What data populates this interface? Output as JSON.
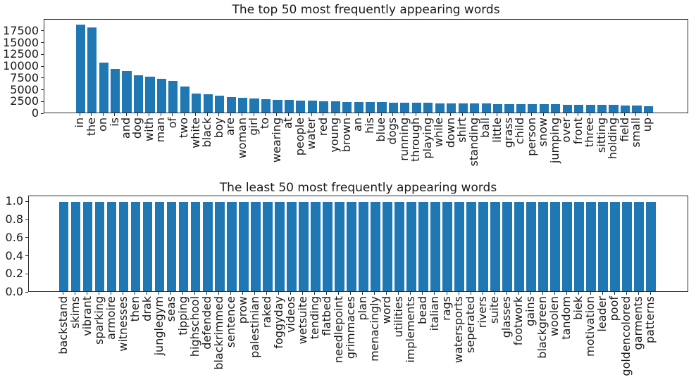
{
  "figure": {
    "background": "#ffffff",
    "bar_color": "#1f77b4",
    "spine_color": "#2b2b2b",
    "text_color": "#191919"
  },
  "chart_data": [
    {
      "type": "bar",
      "title": "The top 50 most frequently appearing words",
      "xlabel": "",
      "ylabel": "",
      "grid": false,
      "legend": false,
      "ylim": [
        0,
        20000
      ],
      "yticks": [
        {
          "v": 0,
          "label": "0"
        },
        {
          "v": 2500,
          "label": "2500"
        },
        {
          "v": 5000,
          "label": "5000"
        },
        {
          "v": 7500,
          "label": "7500"
        },
        {
          "v": 10000,
          "label": "10000"
        },
        {
          "v": 12500,
          "label": "12500"
        },
        {
          "v": 15000,
          "label": "15000"
        },
        {
          "v": 17500,
          "label": "17500"
        }
      ],
      "categories": [
        "in",
        "the",
        "on",
        "is",
        "and",
        "dog",
        "with",
        "man",
        "of",
        "two",
        "white",
        "black",
        "boy",
        "are",
        "woman",
        "girl",
        "to",
        "wearing",
        "at",
        "people",
        "water",
        "red",
        "young",
        "brown",
        "an",
        "his",
        "blue",
        "dogs",
        "running",
        "through",
        "playing",
        "while",
        "down",
        "shirt",
        "standing",
        "ball",
        "little",
        "grass",
        "child",
        "person",
        "snow",
        "jumping",
        "over",
        "front",
        "three",
        "sitting",
        "holding",
        "field",
        "small",
        "up"
      ],
      "values": [
        19000,
        18400,
        10700,
        9400,
        8900,
        8100,
        7800,
        7300,
        6800,
        5600,
        4100,
        3950,
        3600,
        3400,
        3250,
        3100,
        2950,
        2800,
        2700,
        2650,
        2550,
        2450,
        2400,
        2350,
        2300,
        2250,
        2200,
        2150,
        2100,
        2080,
        2050,
        2000,
        1980,
        1950,
        1930,
        1900,
        1880,
        1850,
        1830,
        1800,
        1780,
        1750,
        1720,
        1700,
        1670,
        1640,
        1600,
        1550,
        1450,
        1330
      ]
    },
    {
      "type": "bar",
      "title": "The least 50 most frequently appearing words",
      "xlabel": "",
      "ylabel": "",
      "grid": false,
      "legend": false,
      "ylim": [
        0,
        1.065
      ],
      "yticks": [
        {
          "v": 0.0,
          "label": "0.0"
        },
        {
          "v": 0.2,
          "label": "0.2"
        },
        {
          "v": 0.4,
          "label": "0.4"
        },
        {
          "v": 0.6,
          "label": "0.6"
        },
        {
          "v": 0.8,
          "label": "0.8"
        },
        {
          "v": 1.0,
          "label": "1.0"
        }
      ],
      "categories": [
        "backstand",
        "skims",
        "vibrant",
        "sparking",
        "armoire",
        "witnesses",
        "then",
        "drak",
        "junglegym",
        "seas",
        "tipping",
        "highschool",
        "defended",
        "blackrimmed",
        "sentence",
        "prow",
        "palestinian",
        "raked",
        "foggyday",
        "videos",
        "wetsuite",
        "tending",
        "flatbed",
        "needlepoint",
        "grimmaces",
        "plan",
        "menacingly",
        "word",
        "utilities",
        "implements",
        "bead",
        "italian",
        "rags",
        "watersports",
        "seperated",
        "rivers",
        "suite",
        "glasses",
        "footwork",
        "gains",
        "blackgreen",
        "woolen",
        "tandom",
        "biek",
        "motivation",
        "leader",
        "poof",
        "goldencolored",
        "garments",
        "patterns"
      ],
      "values": [
        1,
        1,
        1,
        1,
        1,
        1,
        1,
        1,
        1,
        1,
        1,
        1,
        1,
        1,
        1,
        1,
        1,
        1,
        1,
        1,
        1,
        1,
        1,
        1,
        1,
        1,
        1,
        1,
        1,
        1,
        1,
        1,
        1,
        1,
        1,
        1,
        1,
        1,
        1,
        1,
        1,
        1,
        1,
        1,
        1,
        1,
        1,
        1,
        1,
        1
      ]
    }
  ]
}
